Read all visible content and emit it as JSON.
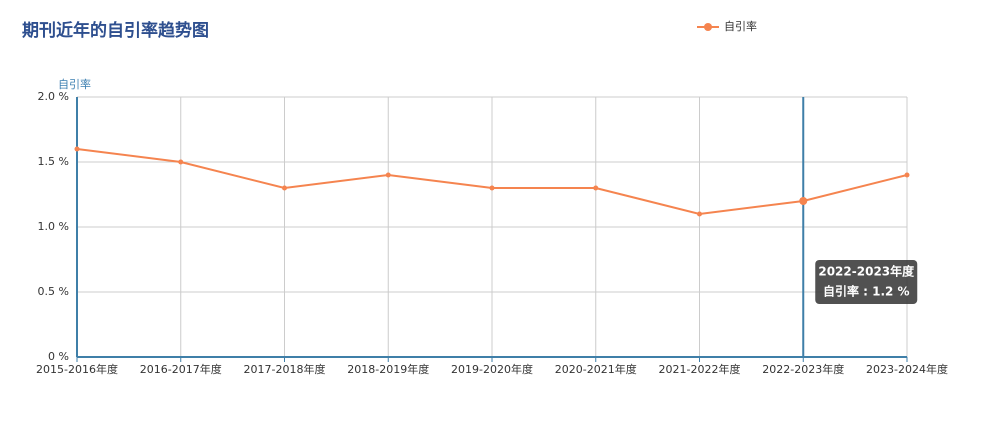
{
  "chart_data": {
    "type": "line",
    "title": "期刊近年的自引率趋势图",
    "y_axis_label": "自引率",
    "categories": [
      "2015-2016年度",
      "2016-2017年度",
      "2017-2018年度",
      "2018-2019年度",
      "2019-2020年度",
      "2020-2021年度",
      "2021-2022年度",
      "2022-2023年度",
      "2023-2024年度"
    ],
    "series": [
      {
        "name": "自引率",
        "color": "#f5844f",
        "values": [
          1.6,
          1.5,
          1.3,
          1.4,
          1.3,
          1.3,
          1.1,
          1.2,
          1.4
        ]
      }
    ],
    "ylim": [
      0,
      2
    ],
    "yticks": [
      {
        "value": 0,
        "label": "0 %"
      },
      {
        "value": 0.5,
        "label": "0.5 %"
      },
      {
        "value": 1,
        "label": "1.0 %"
      },
      {
        "value": 1.5,
        "label": "1.5 %"
      },
      {
        "value": 2,
        "label": "2.0 %"
      }
    ],
    "grid": true,
    "legend": "top-right",
    "tooltip": {
      "title": "2022-2023年度",
      "text": "自引率 : 1.2 %"
    }
  }
}
